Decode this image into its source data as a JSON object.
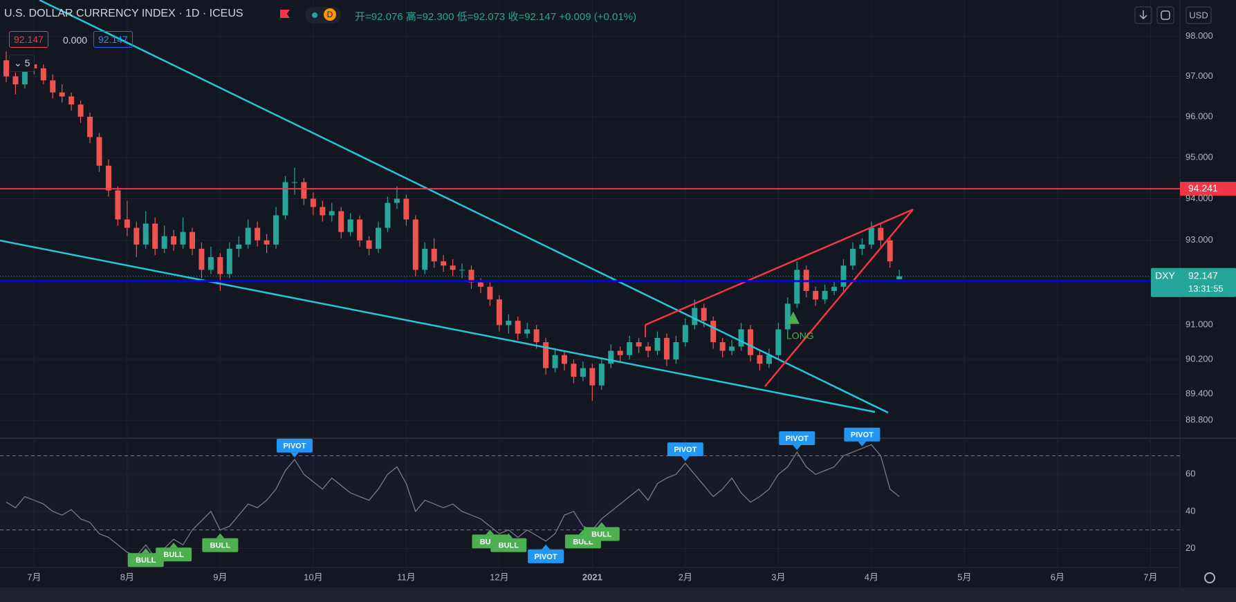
{
  "header": {
    "title": "U.S. DOLLAR CURRENCY INDEX · 1D · ICEUS",
    "badge": "D",
    "open": "开=92.076",
    "high": "高=92.300",
    "low": "低=92.073",
    "close": "收=92.147",
    "change": "+0.009 (+0.01%)",
    "indicator_mid": "0.000",
    "indicator_count": "5"
  },
  "price_scale": {
    "currency": "USD",
    "symbol": "DXY",
    "countdown": "13:31:55"
  },
  "chart_data": [
    {
      "type": "candlestick",
      "log": true,
      "grid": true,
      "up_color": "#26a69a",
      "down_color": "#ef5350",
      "ylim": [
        88.41,
        98.92
      ],
      "yticks": [
        {
          "value": 98,
          "label": "98.000"
        },
        {
          "value": 97,
          "label": "97.000"
        },
        {
          "value": 96,
          "label": "96.000"
        },
        {
          "value": 95,
          "label": "95.000"
        },
        {
          "value": 94,
          "label": "94.000"
        },
        {
          "value": 93,
          "label": "93.000"
        },
        {
          "value": 91,
          "label": "91.000"
        },
        {
          "value": 90.2,
          "label": "90.200"
        },
        {
          "value": 89.4,
          "label": "89.400"
        },
        {
          "value": 88.8,
          "label": "88.800"
        }
      ],
      "hlines": [
        {
          "value": 94.241,
          "color": "#f23645"
        },
        {
          "value": 92.032,
          "color": "#0000ff"
        }
      ],
      "annotations": [
        {
          "text": "LONG",
          "color": "#4caf50"
        }
      ],
      "categories": [
        null,
        null,
        null,
        "7月",
        null,
        null,
        null,
        null,
        null,
        null,
        null,
        null,
        null,
        "8月",
        null,
        null,
        null,
        null,
        null,
        null,
        null,
        null,
        null,
        "9月",
        null,
        null,
        null,
        null,
        null,
        null,
        null,
        null,
        null,
        "10月",
        null,
        null,
        null,
        null,
        null,
        null,
        null,
        null,
        null,
        "11月",
        null,
        null,
        null,
        null,
        null,
        null,
        null,
        null,
        null,
        "12月",
        null,
        null,
        null,
        null,
        null,
        null,
        null,
        null,
        null,
        "2021",
        null,
        null,
        null,
        null,
        null,
        null,
        null,
        null,
        null,
        "2月",
        null,
        null,
        null,
        null,
        null,
        null,
        null,
        null,
        null,
        "3月",
        null,
        null,
        null,
        null,
        null,
        null,
        null,
        null,
        null,
        "4月",
        null,
        null,
        null,
        null,
        null,
        null,
        null,
        null,
        null,
        "5月",
        null,
        null,
        null,
        null,
        null,
        null,
        null,
        null,
        null,
        "6月",
        null,
        null,
        null,
        null,
        null,
        null,
        null,
        null,
        null,
        "7月"
      ],
      "values": [
        [
          97.4,
          97.62,
          96.85,
          97.0
        ],
        [
          97.0,
          97.1,
          96.55,
          96.8
        ],
        [
          96.8,
          97.45,
          96.7,
          97.3
        ],
        [
          97.3,
          97.5,
          97.05,
          97.2
        ],
        [
          97.2,
          97.3,
          96.8,
          96.9
        ],
        [
          96.9,
          97.05,
          96.45,
          96.6
        ],
        [
          96.6,
          96.8,
          96.35,
          96.5
        ],
        [
          96.5,
          96.6,
          96.15,
          96.3
        ],
        [
          96.3,
          96.4,
          95.85,
          96.0
        ],
        [
          96.0,
          96.1,
          95.35,
          95.5
        ],
        [
          95.5,
          95.6,
          94.65,
          94.8
        ],
        [
          94.8,
          94.95,
          94.05,
          94.2
        ],
        [
          94.2,
          94.3,
          93.35,
          93.5
        ],
        [
          93.5,
          93.95,
          93.1,
          93.3
        ],
        [
          93.3,
          93.45,
          92.6,
          92.9
        ],
        [
          92.9,
          93.7,
          92.8,
          93.4
        ],
        [
          93.4,
          93.55,
          92.65,
          92.8
        ],
        [
          92.8,
          93.35,
          92.7,
          93.1
        ],
        [
          93.1,
          93.25,
          92.75,
          92.9
        ],
        [
          92.9,
          93.55,
          92.8,
          93.2
        ],
        [
          93.2,
          93.3,
          92.65,
          92.8
        ],
        [
          92.8,
          92.95,
          92.1,
          92.3
        ],
        [
          92.3,
          92.85,
          92.2,
          92.6
        ],
        [
          92.6,
          92.7,
          91.8,
          92.2
        ],
        [
          92.2,
          92.95,
          92.1,
          92.8
        ],
        [
          92.8,
          93.1,
          92.6,
          92.9
        ],
        [
          92.9,
          93.5,
          92.8,
          93.3
        ],
        [
          93.3,
          93.45,
          92.85,
          93.0
        ],
        [
          93.0,
          93.15,
          92.7,
          92.9
        ],
        [
          92.9,
          93.8,
          92.8,
          93.6
        ],
        [
          93.6,
          94.55,
          93.5,
          94.4
        ],
        [
          94.4,
          94.75,
          94.1,
          94.4
        ],
        [
          94.4,
          94.5,
          93.85,
          94.0
        ],
        [
          94.0,
          94.15,
          93.6,
          93.8
        ],
        [
          93.8,
          93.95,
          93.45,
          93.6
        ],
        [
          93.6,
          93.9,
          93.45,
          93.7
        ],
        [
          93.7,
          93.8,
          93.05,
          93.2
        ],
        [
          93.2,
          93.65,
          93.1,
          93.5
        ],
        [
          93.5,
          93.6,
          92.85,
          93.0
        ],
        [
          93.0,
          93.1,
          92.65,
          92.8
        ],
        [
          92.8,
          93.45,
          92.7,
          93.3
        ],
        [
          93.3,
          94.05,
          93.2,
          93.9
        ],
        [
          93.9,
          94.3,
          93.75,
          94.0
        ],
        [
          94.0,
          94.1,
          93.35,
          93.5
        ],
        [
          93.5,
          93.6,
          92.15,
          92.3
        ],
        [
          92.3,
          92.95,
          92.2,
          92.8
        ],
        [
          92.8,
          93.05,
          92.35,
          92.5
        ],
        [
          92.5,
          92.65,
          92.25,
          92.4
        ],
        [
          92.4,
          92.55,
          92.15,
          92.3
        ],
        [
          92.3,
          92.45,
          92.1,
          92.3
        ],
        [
          92.3,
          92.4,
          91.85,
          92.0
        ],
        [
          92.0,
          92.1,
          91.75,
          91.9
        ],
        [
          91.9,
          92.0,
          91.45,
          91.6
        ],
        [
          91.6,
          91.7,
          90.85,
          91.0
        ],
        [
          91.0,
          91.25,
          90.8,
          91.1
        ],
        [
          91.1,
          91.2,
          90.65,
          90.8
        ],
        [
          90.8,
          91.05,
          90.7,
          90.9
        ],
        [
          90.9,
          91.0,
          90.45,
          90.6
        ],
        [
          90.6,
          90.7,
          89.85,
          90.0
        ],
        [
          90.0,
          90.45,
          89.9,
          90.3
        ],
        [
          90.3,
          90.4,
          89.95,
          90.1
        ],
        [
          90.1,
          90.2,
          89.65,
          89.8
        ],
        [
          89.8,
          90.15,
          89.7,
          90.0
        ],
        [
          90.0,
          90.1,
          89.25,
          89.6
        ],
        [
          89.6,
          90.25,
          89.5,
          90.1
        ],
        [
          90.1,
          90.55,
          90.0,
          90.4
        ],
        [
          90.4,
          90.5,
          90.15,
          90.3
        ],
        [
          90.3,
          90.75,
          90.2,
          90.6
        ],
        [
          90.6,
          90.7,
          90.35,
          90.5
        ],
        [
          90.5,
          90.6,
          90.25,
          90.4
        ],
        [
          90.4,
          90.85,
          90.3,
          90.7
        ],
        [
          90.7,
          90.8,
          90.05,
          90.2
        ],
        [
          90.2,
          90.75,
          90.1,
          90.6
        ],
        [
          90.6,
          91.15,
          90.5,
          91.0
        ],
        [
          91.0,
          91.6,
          90.9,
          91.4
        ],
        [
          91.4,
          91.5,
          90.95,
          91.1
        ],
        [
          91.1,
          91.2,
          90.45,
          90.6
        ],
        [
          90.6,
          90.7,
          90.25,
          90.4
        ],
        [
          90.4,
          90.65,
          90.3,
          90.5
        ],
        [
          90.5,
          91.05,
          90.4,
          90.9
        ],
        [
          90.9,
          91.0,
          90.15,
          90.3
        ],
        [
          90.3,
          90.4,
          89.95,
          90.1
        ],
        [
          90.1,
          90.45,
          90.0,
          90.3
        ],
        [
          90.3,
          91.05,
          90.2,
          90.9
        ],
        [
          90.9,
          91.65,
          90.8,
          91.5
        ],
        [
          91.5,
          92.5,
          91.4,
          92.3
        ],
        [
          92.3,
          92.4,
          91.65,
          91.8
        ],
        [
          91.8,
          91.9,
          91.45,
          91.6
        ],
        [
          91.6,
          91.95,
          91.5,
          91.8
        ],
        [
          91.8,
          92.05,
          91.7,
          91.9
        ],
        [
          91.9,
          92.55,
          91.8,
          92.4
        ],
        [
          92.4,
          92.95,
          92.3,
          92.8
        ],
        [
          92.8,
          93.05,
          92.65,
          92.9
        ],
        [
          92.9,
          93.45,
          92.8,
          93.3
        ],
        [
          93.3,
          93.4,
          92.85,
          93.0
        ],
        [
          93.0,
          93.1,
          92.35,
          92.5
        ],
        [
          92.076,
          92.3,
          92.073,
          92.147
        ],
        null,
        null,
        null,
        null,
        null,
        null,
        null,
        null,
        null,
        null,
        null,
        null,
        null,
        null,
        null,
        null,
        null,
        null,
        null,
        null,
        null,
        null,
        null,
        null,
        null,
        null,
        null
      ]
    },
    {
      "type": "line",
      "color": "#787b86",
      "band_color": "#7e57c2",
      "ylim": [
        9.8,
        79.1
      ],
      "yticks": [
        20,
        40,
        60
      ],
      "levels": [
        30,
        70
      ],
      "annotations": [
        {
          "text": "PIVOT",
          "color": "#2196f3"
        },
        {
          "text": "PIVOT",
          "color": "#2196f3"
        },
        {
          "text": "PIVOT",
          "color": "#2196f3"
        },
        {
          "text": "PIVOT",
          "color": "#2196f3"
        },
        {
          "text": "BULL",
          "color": "#4caf50"
        },
        {
          "text": "BULL",
          "color": "#4caf50"
        },
        {
          "text": "BULL",
          "color": "#4caf50"
        },
        {
          "text": "BULL",
          "color": "#4caf50"
        },
        {
          "text": "BULL",
          "color": "#4caf50"
        },
        {
          "text": "PIVOT",
          "color": "#2196f3"
        },
        {
          "text": "BULL",
          "color": "#4caf50"
        },
        {
          "text": "BULL",
          "color": "#4caf50"
        }
      ],
      "values": [
        45,
        42,
        48,
        46,
        44,
        40,
        38,
        41,
        36,
        34,
        28,
        26,
        22,
        18,
        16,
        22,
        15,
        20,
        25,
        22,
        30,
        35,
        40,
        30,
        32,
        38,
        44,
        42,
        46,
        52,
        62,
        68,
        60,
        56,
        52,
        58,
        54,
        50,
        48,
        46,
        52,
        60,
        64,
        55,
        40,
        46,
        44,
        42,
        44,
        40,
        38,
        36,
        32,
        28,
        30,
        26,
        30,
        27,
        24,
        28,
        38,
        40,
        32,
        30,
        36,
        40,
        44,
        48,
        52,
        46,
        55,
        58,
        60,
        66,
        60,
        54,
        48,
        52,
        58,
        50,
        45,
        48,
        52,
        60,
        64,
        72,
        64,
        60,
        62,
        64,
        70,
        72,
        74,
        76,
        70,
        52,
        48,
        null,
        null,
        null,
        null,
        null,
        null,
        null,
        null,
        null,
        null,
        null,
        null,
        null,
        null,
        null,
        null,
        null,
        null,
        null,
        null,
        null,
        null,
        null,
        null,
        null,
        null,
        null
      ]
    }
  ]
}
